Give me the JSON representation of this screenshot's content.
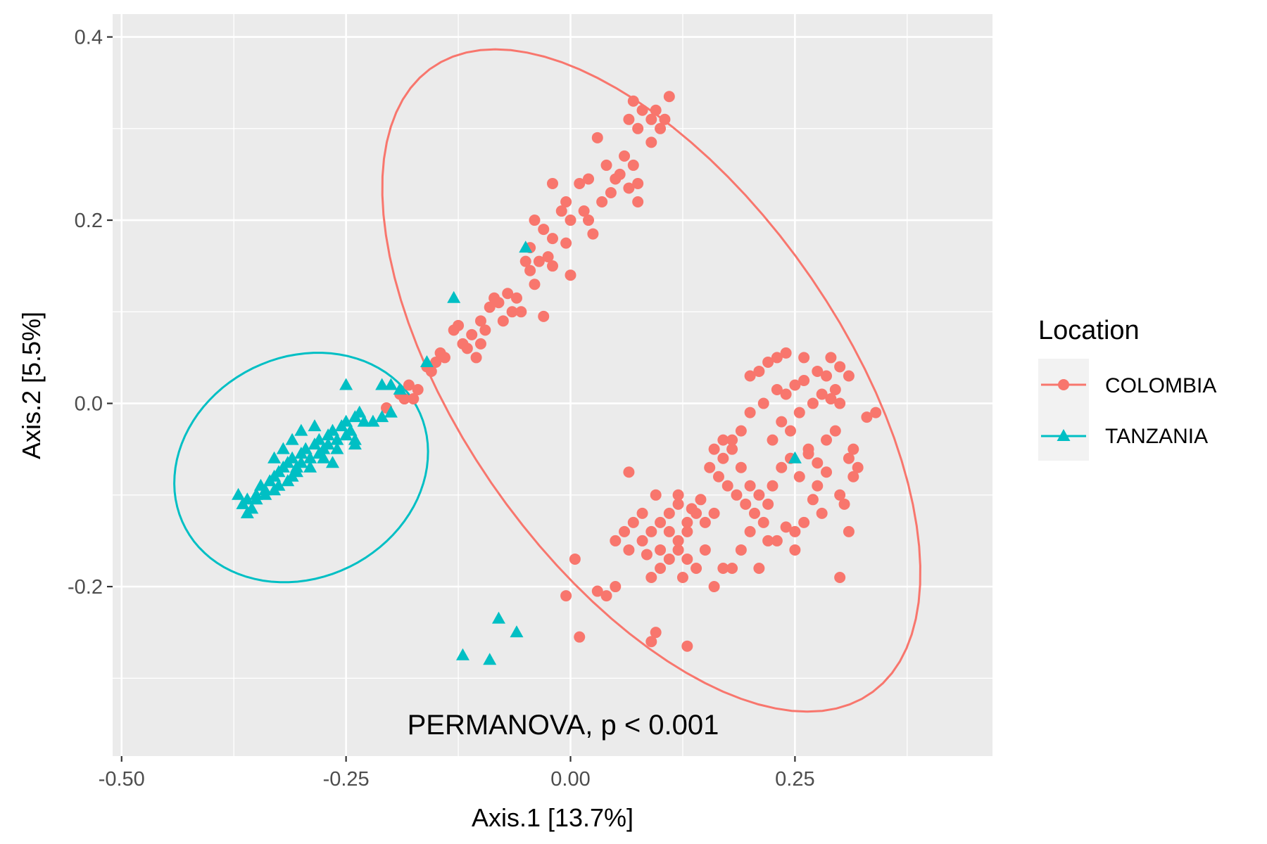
{
  "chart_data": {
    "type": "scatter",
    "title": "",
    "xlabel": "Axis.1   [13.7%]",
    "ylabel": "Axis.2   [5.5%]",
    "xlim": [
      -0.51,
      0.47
    ],
    "ylim": [
      -0.385,
      0.425
    ],
    "x_ticks": [
      -0.5,
      -0.25,
      0.0,
      0.25
    ],
    "x_tick_labels": [
      "-0.50",
      "-0.25",
      "0.00",
      "0.25"
    ],
    "y_ticks": [
      -0.2,
      0.0,
      0.2,
      0.4
    ],
    "y_tick_labels": [
      "-0.2",
      "0.0",
      "0.2",
      "0.4"
    ],
    "grid": true,
    "legend_position": "right",
    "annotation": "PERMANOVA, p < 0.001",
    "legend": {
      "title": "Location",
      "entries": [
        "COLOMBIA",
        "TANZANIA"
      ]
    },
    "ellipses": [
      {
        "series": "COLOMBIA",
        "center": [
          0.09,
          0.025
        ],
        "semi_axes": [
          0.42,
          0.21
        ],
        "angle_deg": -54
      },
      {
        "series": "TANZANIA",
        "center": [
          -0.3,
          -0.07
        ],
        "semi_axes": [
          0.145,
          0.121
        ],
        "angle_deg": 24
      }
    ],
    "series": [
      {
        "name": "COLOMBIA",
        "color": "#F8766D",
        "marker": "circle",
        "points": [
          [
            0.07,
            0.33
          ],
          [
            0.08,
            0.32
          ],
          [
            0.09,
            0.31
          ],
          [
            0.11,
            0.335
          ],
          [
            0.1,
            0.3
          ],
          [
            0.065,
            0.31
          ],
          [
            0.075,
            0.3
          ],
          [
            0.095,
            0.32
          ],
          [
            0.105,
            0.31
          ],
          [
            0.09,
            0.285
          ],
          [
            0.03,
            0.29
          ],
          [
            0.06,
            0.27
          ],
          [
            0.055,
            0.25
          ],
          [
            0.045,
            0.23
          ],
          [
            0.04,
            0.26
          ],
          [
            0.07,
            0.26
          ],
          [
            0.075,
            0.24
          ],
          [
            0.05,
            0.245
          ],
          [
            0.065,
            0.235
          ],
          [
            0.075,
            0.22
          ],
          [
            0.035,
            0.22
          ],
          [
            0.02,
            0.245
          ],
          [
            0.01,
            0.24
          ],
          [
            0.015,
            0.21
          ],
          [
            -0.005,
            0.22
          ],
          [
            -0.02,
            0.24
          ],
          [
            0.0,
            0.2
          ],
          [
            0.02,
            0.2
          ],
          [
            -0.01,
            0.21
          ],
          [
            0.025,
            0.185
          ],
          [
            -0.03,
            0.19
          ],
          [
            -0.04,
            0.2
          ],
          [
            -0.045,
            0.17
          ],
          [
            -0.05,
            0.155
          ],
          [
            -0.045,
            0.145
          ],
          [
            -0.035,
            0.155
          ],
          [
            -0.04,
            0.13
          ],
          [
            -0.025,
            0.16
          ],
          [
            -0.02,
            0.15
          ],
          [
            -0.005,
            0.175
          ],
          [
            0.0,
            0.14
          ],
          [
            -0.02,
            0.18
          ],
          [
            -0.06,
            0.115
          ],
          [
            -0.07,
            0.12
          ],
          [
            -0.08,
            0.11
          ],
          [
            -0.085,
            0.115
          ],
          [
            -0.09,
            0.105
          ],
          [
            -0.065,
            0.1
          ],
          [
            -0.075,
            0.09
          ],
          [
            -0.055,
            0.1
          ],
          [
            -0.03,
            0.095
          ],
          [
            -0.1,
            0.09
          ],
          [
            -0.11,
            0.075
          ],
          [
            -0.095,
            0.08
          ],
          [
            -0.1,
            0.065
          ],
          [
            -0.115,
            0.06
          ],
          [
            -0.12,
            0.065
          ],
          [
            -0.105,
            0.05
          ],
          [
            -0.125,
            0.085
          ],
          [
            -0.13,
            0.08
          ],
          [
            -0.14,
            0.05
          ],
          [
            -0.15,
            0.045
          ],
          [
            -0.155,
            0.035
          ],
          [
            -0.145,
            0.055
          ],
          [
            -0.16,
            0.04
          ],
          [
            -0.17,
            0.015
          ],
          [
            -0.18,
            0.02
          ],
          [
            -0.19,
            0.01
          ],
          [
            -0.175,
            0.005
          ],
          [
            -0.185,
            0.005
          ],
          [
            -0.205,
            -0.005
          ],
          [
            0.2,
            0.03
          ],
          [
            0.21,
            0.035
          ],
          [
            0.22,
            0.045
          ],
          [
            0.23,
            0.05
          ],
          [
            0.24,
            0.055
          ],
          [
            0.26,
            0.05
          ],
          [
            0.275,
            0.035
          ],
          [
            0.285,
            0.03
          ],
          [
            0.29,
            0.05
          ],
          [
            0.295,
            0.015
          ],
          [
            0.3,
            0.04
          ],
          [
            0.31,
            0.03
          ],
          [
            0.33,
            -0.015
          ],
          [
            0.34,
            -0.01
          ],
          [
            0.25,
            0.02
          ],
          [
            0.26,
            0.025
          ],
          [
            0.27,
            0.0
          ],
          [
            0.24,
            0.01
          ],
          [
            0.23,
            0.015
          ],
          [
            0.28,
            0.01
          ],
          [
            0.29,
            0.005
          ],
          [
            0.3,
            0.0
          ],
          [
            0.215,
            0.0
          ],
          [
            0.2,
            -0.01
          ],
          [
            0.19,
            -0.03
          ],
          [
            0.18,
            -0.04
          ],
          [
            0.17,
            -0.06
          ],
          [
            0.16,
            -0.05
          ],
          [
            0.155,
            -0.07
          ],
          [
            0.165,
            -0.08
          ],
          [
            0.175,
            -0.09
          ],
          [
            0.185,
            -0.1
          ],
          [
            0.195,
            -0.11
          ],
          [
            0.205,
            -0.12
          ],
          [
            0.215,
            -0.13
          ],
          [
            0.225,
            -0.09
          ],
          [
            0.235,
            -0.07
          ],
          [
            0.245,
            -0.06
          ],
          [
            0.255,
            -0.08
          ],
          [
            0.265,
            -0.05
          ],
          [
            0.275,
            -0.065
          ],
          [
            0.285,
            -0.04
          ],
          [
            0.295,
            -0.03
          ],
          [
            0.31,
            -0.06
          ],
          [
            0.315,
            -0.08
          ],
          [
            0.32,
            -0.07
          ],
          [
            0.3,
            -0.1
          ],
          [
            0.305,
            -0.11
          ],
          [
            0.28,
            -0.12
          ],
          [
            0.26,
            -0.13
          ],
          [
            0.25,
            -0.14
          ],
          [
            0.24,
            -0.135
          ],
          [
            0.23,
            -0.15
          ],
          [
            0.22,
            -0.11
          ],
          [
            0.21,
            -0.1
          ],
          [
            0.2,
            -0.09
          ],
          [
            0.19,
            -0.07
          ],
          [
            0.18,
            -0.05
          ],
          [
            0.17,
            -0.04
          ],
          [
            0.16,
            -0.12
          ],
          [
            0.15,
            -0.13
          ],
          [
            0.14,
            -0.12
          ],
          [
            0.13,
            -0.14
          ],
          [
            0.12,
            -0.11
          ],
          [
            0.11,
            -0.12
          ],
          [
            0.1,
            -0.13
          ],
          [
            0.09,
            -0.14
          ],
          [
            0.08,
            -0.12
          ],
          [
            0.07,
            -0.13
          ],
          [
            0.06,
            -0.14
          ],
          [
            0.05,
            -0.15
          ],
          [
            0.065,
            -0.16
          ],
          [
            0.08,
            -0.15
          ],
          [
            0.1,
            -0.16
          ],
          [
            0.11,
            -0.17
          ],
          [
            0.12,
            -0.16
          ],
          [
            0.13,
            -0.17
          ],
          [
            0.14,
            -0.18
          ],
          [
            0.15,
            -0.16
          ],
          [
            0.16,
            -0.2
          ],
          [
            0.17,
            -0.18
          ],
          [
            0.18,
            -0.18
          ],
          [
            0.19,
            -0.16
          ],
          [
            0.2,
            -0.14
          ],
          [
            0.21,
            -0.18
          ],
          [
            0.22,
            -0.15
          ],
          [
            0.1,
            -0.18
          ],
          [
            0.09,
            -0.19
          ],
          [
            0.085,
            -0.165
          ],
          [
            0.11,
            -0.14
          ],
          [
            0.12,
            -0.15
          ],
          [
            0.13,
            -0.13
          ],
          [
            0.125,
            -0.19
          ],
          [
            0.05,
            -0.2
          ],
          [
            0.04,
            -0.21
          ],
          [
            0.03,
            -0.205
          ],
          [
            0.005,
            -0.17
          ],
          [
            -0.005,
            -0.21
          ],
          [
            0.01,
            -0.255
          ],
          [
            0.09,
            -0.26
          ],
          [
            0.095,
            -0.25
          ],
          [
            0.13,
            -0.265
          ],
          [
            0.3,
            -0.19
          ],
          [
            0.31,
            -0.14
          ],
          [
            0.065,
            -0.075
          ],
          [
            0.095,
            -0.1
          ],
          [
            0.12,
            -0.1
          ],
          [
            0.135,
            -0.115
          ],
          [
            0.145,
            -0.105
          ],
          [
            0.25,
            -0.16
          ],
          [
            0.27,
            -0.105
          ],
          [
            0.225,
            -0.04
          ],
          [
            0.235,
            -0.02
          ],
          [
            0.245,
            -0.03
          ],
          [
            0.255,
            -0.01
          ],
          [
            0.265,
            -0.055
          ],
          [
            0.275,
            -0.09
          ],
          [
            0.285,
            -0.075
          ],
          [
            0.315,
            -0.05
          ]
        ]
      },
      {
        "name": "TANZANIA",
        "color": "#00BFC4",
        "marker": "triangle",
        "points": [
          [
            -0.37,
            -0.1
          ],
          [
            -0.365,
            -0.11
          ],
          [
            -0.36,
            -0.105
          ],
          [
            -0.355,
            -0.115
          ],
          [
            -0.35,
            -0.1
          ],
          [
            -0.345,
            -0.09
          ],
          [
            -0.34,
            -0.095
          ],
          [
            -0.335,
            -0.085
          ],
          [
            -0.33,
            -0.08
          ],
          [
            -0.325,
            -0.075
          ],
          [
            -0.32,
            -0.07
          ],
          [
            -0.315,
            -0.065
          ],
          [
            -0.31,
            -0.06
          ],
          [
            -0.305,
            -0.07
          ],
          [
            -0.3,
            -0.055
          ],
          [
            -0.295,
            -0.05
          ],
          [
            -0.29,
            -0.06
          ],
          [
            -0.285,
            -0.045
          ],
          [
            -0.28,
            -0.04
          ],
          [
            -0.275,
            -0.05
          ],
          [
            -0.27,
            -0.035
          ],
          [
            -0.265,
            -0.03
          ],
          [
            -0.26,
            -0.04
          ],
          [
            -0.255,
            -0.025
          ],
          [
            -0.25,
            -0.02
          ],
          [
            -0.245,
            -0.03
          ],
          [
            -0.24,
            -0.015
          ],
          [
            -0.235,
            -0.01
          ],
          [
            -0.23,
            -0.02
          ],
          [
            -0.22,
            -0.02
          ],
          [
            -0.21,
            -0.015
          ],
          [
            -0.2,
            -0.01
          ],
          [
            -0.325,
            -0.09
          ],
          [
            -0.315,
            -0.085
          ],
          [
            -0.305,
            -0.075
          ],
          [
            -0.31,
            -0.08
          ],
          [
            -0.3,
            -0.065
          ],
          [
            -0.29,
            -0.07
          ],
          [
            -0.28,
            -0.055
          ],
          [
            -0.27,
            -0.045
          ],
          [
            -0.26,
            -0.05
          ],
          [
            -0.25,
            -0.035
          ],
          [
            -0.24,
            -0.04
          ],
          [
            -0.33,
            -0.06
          ],
          [
            -0.32,
            -0.05
          ],
          [
            -0.31,
            -0.04
          ],
          [
            -0.3,
            -0.03
          ],
          [
            -0.285,
            -0.025
          ],
          [
            -0.275,
            -0.06
          ],
          [
            -0.265,
            -0.065
          ],
          [
            -0.34,
            -0.1
          ],
          [
            -0.35,
            -0.105
          ],
          [
            -0.33,
            -0.095
          ],
          [
            -0.36,
            -0.12
          ],
          [
            -0.24,
            -0.045
          ],
          [
            -0.25,
            0.02
          ],
          [
            -0.21,
            0.02
          ],
          [
            -0.2,
            0.02
          ],
          [
            -0.19,
            0.015
          ],
          [
            -0.16,
            0.045
          ],
          [
            -0.13,
            0.115
          ],
          [
            -0.05,
            0.17
          ],
          [
            0.25,
            -0.06
          ],
          [
            -0.08,
            -0.235
          ],
          [
            -0.06,
            -0.25
          ],
          [
            -0.12,
            -0.275
          ],
          [
            -0.09,
            -0.28
          ]
        ]
      }
    ]
  }
}
